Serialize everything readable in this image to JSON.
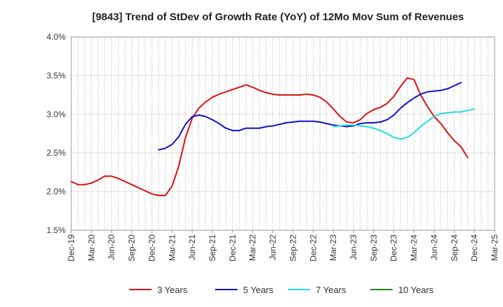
{
  "chart_data": {
    "type": "line",
    "title": "[9843]  Trend of StDev of Growth Rate (YoY) of 12Mo Mov Sum of Revenues",
    "xlabel": "",
    "ylabel": "",
    "ylim": [
      0.015,
      0.04
    ],
    "yticks": [
      {
        "value": 0.015,
        "label": "1.5%"
      },
      {
        "value": 0.02,
        "label": "2.0%"
      },
      {
        "value": 0.025,
        "label": "2.5%"
      },
      {
        "value": 0.03,
        "label": "3.0%"
      },
      {
        "value": 0.035,
        "label": "3.5%"
      },
      {
        "value": 0.04,
        "label": "4.0%"
      }
    ],
    "xticks": [
      "Dec-19",
      "Mar-20",
      "Jun-20",
      "Sep-20",
      "Dec-20",
      "Mar-21",
      "Jun-21",
      "Sep-21",
      "Dec-21",
      "Mar-22",
      "Jun-22",
      "Sep-22",
      "Dec-22",
      "Mar-23",
      "Jun-23",
      "Sep-23",
      "Dec-23",
      "Mar-24",
      "Jun-24",
      "Sep-24",
      "Dec-24",
      "Mar-25"
    ],
    "x_months_total": 63,
    "grid": true,
    "legend_position": "bottom",
    "series": [
      {
        "name": "3 Years",
        "color": "#dd1111",
        "start_index": 0,
        "values": [
          0.0213,
          0.0209,
          0.0209,
          0.0211,
          0.0215,
          0.022,
          0.022,
          0.0217,
          0.0213,
          0.0209,
          0.0205,
          0.0201,
          0.0197,
          0.0195,
          0.0195,
          0.0207,
          0.0233,
          0.027,
          0.0295,
          0.0308,
          0.0316,
          0.0322,
          0.0326,
          0.0329,
          0.0332,
          0.0335,
          0.0338,
          0.0335,
          0.0331,
          0.0328,
          0.0326,
          0.0325,
          0.0325,
          0.0325,
          0.0325,
          0.0326,
          0.0325,
          0.0322,
          0.0316,
          0.0307,
          0.0297,
          0.029,
          0.0289,
          0.0293,
          0.0301,
          0.0306,
          0.0309,
          0.0314,
          0.0323,
          0.0336,
          0.0347,
          0.0345,
          0.0325,
          0.031,
          0.0297,
          0.0288,
          0.0276,
          0.0266,
          0.0258,
          0.0244
        ]
      },
      {
        "name": "5 Years",
        "color": "#1111cc",
        "start_index": 13,
        "values": [
          0.0254,
          0.0256,
          0.0261,
          0.0271,
          0.0287,
          0.0297,
          0.0299,
          0.0297,
          0.0293,
          0.0288,
          0.0282,
          0.0279,
          0.0279,
          0.0282,
          0.0282,
          0.0282,
          0.0284,
          0.0285,
          0.0287,
          0.0289,
          0.029,
          0.0291,
          0.0291,
          0.0291,
          0.029,
          0.0288,
          0.0286,
          0.0285,
          0.0284,
          0.0285,
          0.0288,
          0.0289,
          0.0289,
          0.029,
          0.0293,
          0.0299,
          0.0308,
          0.0315,
          0.0321,
          0.0326,
          0.0329,
          0.033,
          0.0331,
          0.0333,
          0.0337,
          0.0341
        ]
      },
      {
        "name": "7 Years",
        "color": "#22dddd",
        "start_index": 39,
        "values": [
          0.0284,
          0.0285,
          0.0286,
          0.0286,
          0.0285,
          0.0284,
          0.0282,
          0.0279,
          0.0275,
          0.027,
          0.0268,
          0.027,
          0.0276,
          0.0284,
          0.0291,
          0.0297,
          0.0301,
          0.0302,
          0.0303,
          0.0303,
          0.0305,
          0.0307
        ]
      },
      {
        "name": "10 Years",
        "color": "#228822",
        "start_index": 0,
        "values": []
      }
    ]
  }
}
